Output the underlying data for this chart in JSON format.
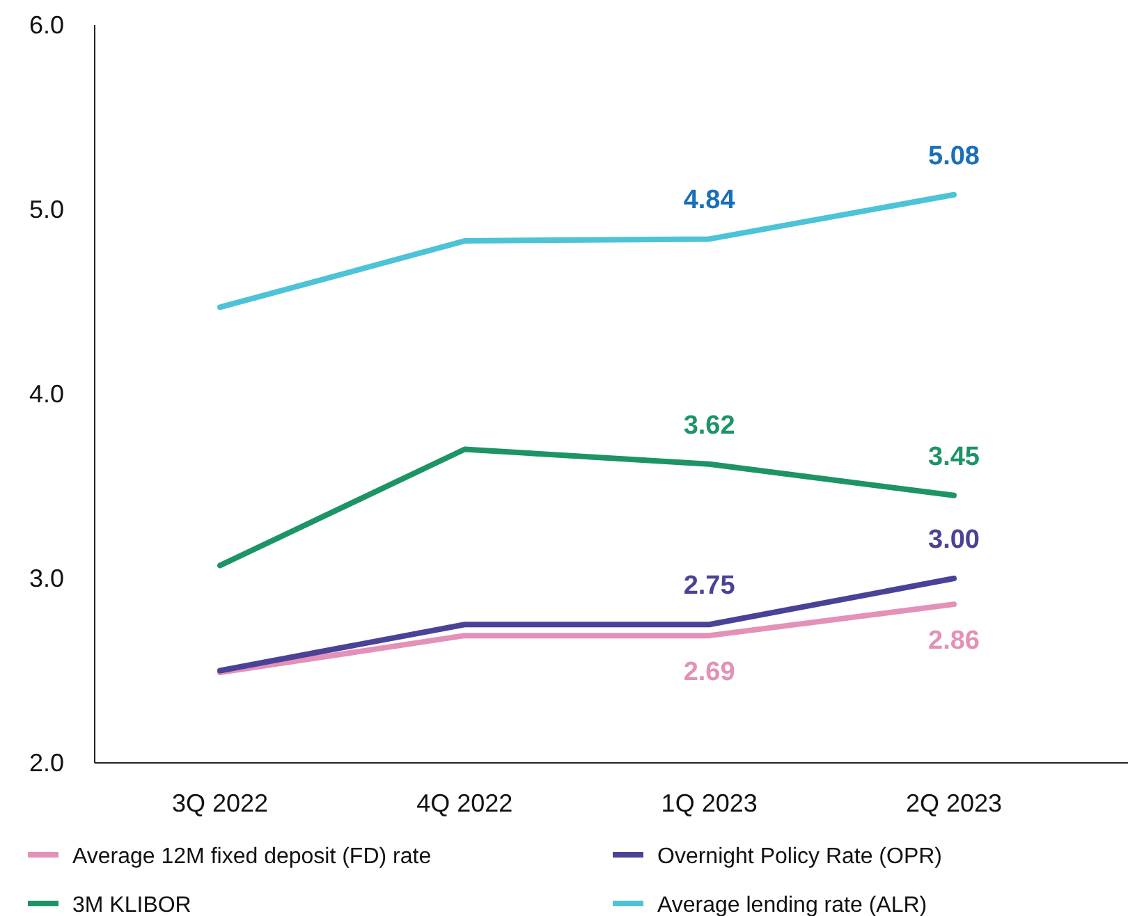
{
  "chart_data": {
    "type": "line",
    "categories": [
      "3Q 2022",
      "4Q 2022",
      "1Q 2023",
      "2Q 2023"
    ],
    "ylim": [
      2.0,
      6.0
    ],
    "yticks": [
      {
        "value": 2,
        "label": "2.0"
      },
      {
        "value": 3,
        "label": "3.0"
      },
      {
        "value": 4,
        "label": "4.0"
      },
      {
        "value": 5,
        "label": "5.0"
      },
      {
        "value": 6,
        "label": "6.0"
      }
    ],
    "grid": false,
    "legend": "bottom",
    "marker": "none",
    "line_style": "solid",
    "series": [
      {
        "name": "Average 12M fixed deposit (FD) rate",
        "color": "#e391b8",
        "values": [
          2.49,
          2.69,
          2.69,
          2.86
        ],
        "value_labels": [
          null,
          null,
          "2.69",
          "2.86"
        ]
      },
      {
        "name": "Overnight Policy Rate (OPR)",
        "color": "#4a4296",
        "values": [
          2.5,
          2.75,
          2.75,
          3.0
        ],
        "value_labels": [
          null,
          null,
          "2.75",
          "3.00"
        ]
      },
      {
        "name": "3M KLIBOR",
        "color": "#1c9465",
        "values": [
          3.07,
          3.7,
          3.62,
          3.45
        ],
        "value_labels": [
          null,
          null,
          "3.62",
          "3.45"
        ]
      },
      {
        "name": "Average lending rate (ALR)",
        "color": "#4cc3d6",
        "values": [
          4.47,
          4.83,
          4.84,
          5.08
        ],
        "value_labels": [
          null,
          null,
          "4.84",
          "5.08"
        ]
      }
    ]
  }
}
